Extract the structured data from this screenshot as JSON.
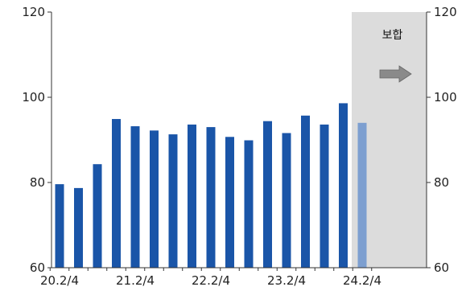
{
  "chart_data": {
    "type": "bar",
    "categories": [
      "20.2/4",
      "20.3/4",
      "20.4/4",
      "21.1/4",
      "21.2/4",
      "21.3/4",
      "21.4/4",
      "22.1/4",
      "22.2/4",
      "22.3/4",
      "22.4/4",
      "23.1/4",
      "23.2/4",
      "23.3/4",
      "23.4/4",
      "24.1/4",
      "24.2/4"
    ],
    "x_tick_labels": [
      "20.2/4",
      "21.2/4",
      "22.2/4",
      "23.2/4",
      "24.2/4"
    ],
    "series": [
      {
        "values": [
          79.6,
          78.7,
          84.3,
          94.9,
          93.2,
          92.2,
          91.3,
          93.6,
          93.0,
          90.7,
          89.9,
          94.4,
          91.6,
          95.7,
          93.6,
          98.6,
          94.0
        ]
      }
    ],
    "ylim": [
      60,
      120
    ],
    "yticks": [
      60,
      80,
      100,
      120
    ],
    "y2ticks": [
      60,
      80,
      100,
      120
    ],
    "colors": {
      "bar": "#1a55a8",
      "projection_bar": "#7d9fd0",
      "shade": "#dcdcdc",
      "arrow": "#8a8a8a"
    },
    "shaded_region": {
      "from_category": "24.2/4",
      "label": "보합"
    },
    "annotation_icon": "right-arrow-icon"
  }
}
